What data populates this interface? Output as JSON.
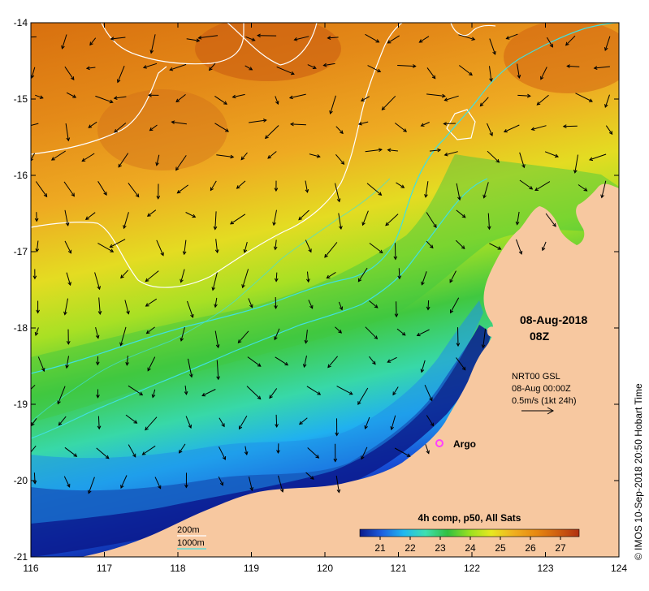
{
  "map": {
    "longitude_ticks": [
      "116",
      "117",
      "118",
      "119",
      "120",
      "121",
      "122",
      "123",
      "124"
    ],
    "latitude_ticks": [
      "-14",
      "-15",
      "-16",
      "-17",
      "-18",
      "-19",
      "-20",
      "-21"
    ],
    "lon_range": [
      116,
      124
    ],
    "lat_range": [
      -14,
      -21
    ],
    "land_color": "#f7c8a0",
    "colormap": [
      "#0a1a8c",
      "#1f5fe0",
      "#20b8f0",
      "#40e0b0",
      "#30c040",
      "#9ae020",
      "#e8e820",
      "#f0b020",
      "#e88a10",
      "#d06010",
      "#b03010"
    ]
  },
  "date": {
    "line1": "08-Aug-2018",
    "line2": "08Z"
  },
  "vector_legend": {
    "line1": "NRT00 GSL",
    "line2": "08-Aug 00:00Z",
    "line3": "0.5m/s (1kt 24h)"
  },
  "argo": {
    "label": "Argo",
    "color": "#ff40ff"
  },
  "isobaths": [
    {
      "label": "200m",
      "color": "#ffffff"
    },
    {
      "label": "1000m",
      "color": "#40e0e0"
    }
  ],
  "colorbar": {
    "title": "4h comp, p50, All Sats",
    "ticks": [
      "21",
      "22",
      "23",
      "24",
      "25",
      "26",
      "27"
    ]
  },
  "credit": "© IMOS 10-Sep-2018 20:50 Hobart Time"
}
